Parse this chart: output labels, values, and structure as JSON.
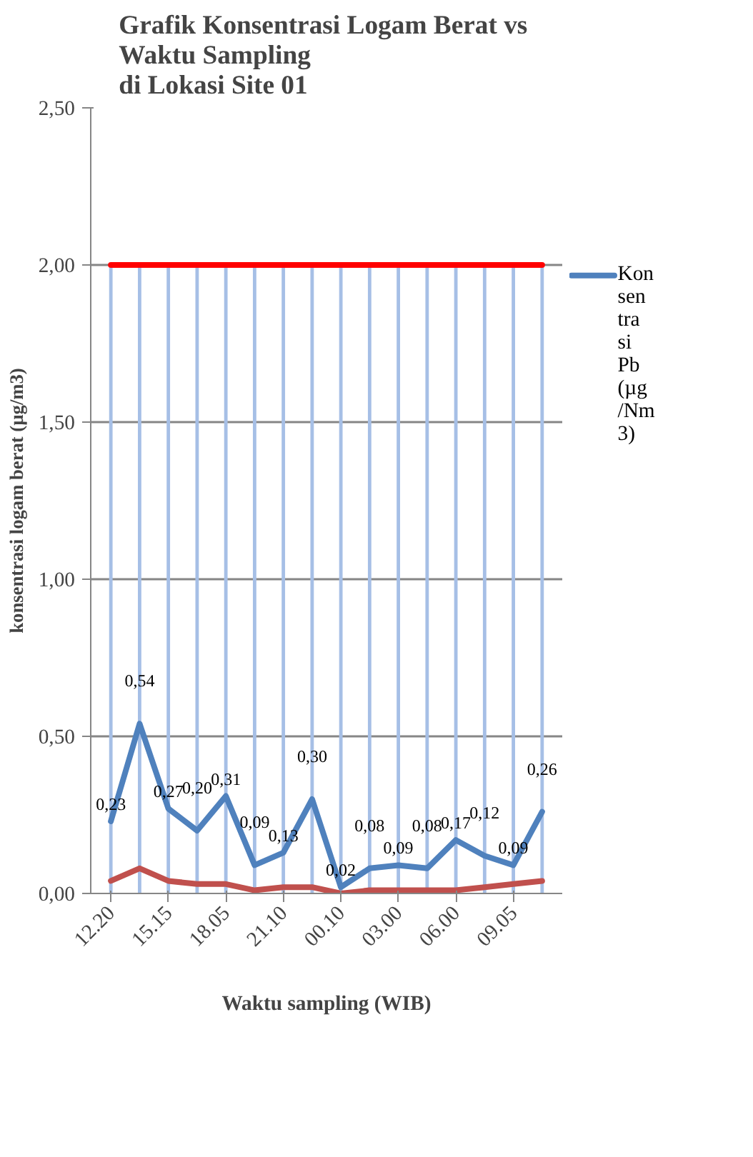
{
  "chart_data": {
    "type": "line",
    "title": "Grafik  Konsentrasi Logam Berat vs\nWaktu Sampling\ndi Lokasi Site 01",
    "xlabel": "Waktu sampling (WIB)",
    "ylabel": "konsentrasi logam berat (µg/m3)",
    "categories": [
      "12.20",
      null,
      "15.15",
      null,
      "18.05",
      null,
      "21.10",
      null,
      "00.10",
      null,
      "03.00",
      null,
      "06.00",
      null,
      "09.05",
      null
    ],
    "series": [
      {
        "type": "bar",
        "color": "#a6bfe6",
        "values": [
          2,
          2,
          2,
          2,
          2,
          2,
          2,
          2,
          2,
          2,
          2,
          2,
          2,
          2,
          2,
          2
        ]
      },
      {
        "color": "#ff0000",
        "values": [
          2,
          2,
          2,
          2,
          2,
          2,
          2,
          2,
          2,
          2,
          2,
          2,
          2,
          2,
          2,
          2
        ]
      },
      {
        "color": "#c0504d",
        "values": [
          0.04,
          0.08,
          0.04,
          0.03,
          0.03,
          0.01,
          0.02,
          0.02,
          0.0,
          0.01,
          0.01,
          0.01,
          0.01,
          0.02,
          0.03,
          0.04
        ]
      },
      {
        "name": "Konsentrasi Pb (µg/Nm3)",
        "color": "#4f81bd",
        "values": [
          0.23,
          0.54,
          0.27,
          0.2,
          0.31,
          0.09,
          0.13,
          0.3,
          0.02,
          0.08,
          0.09,
          0.08,
          0.17,
          0.12,
          0.09,
          0.26
        ],
        "value_labels": [
          "0,23",
          "0,54",
          "0,27",
          "0,20",
          "0,31",
          "0,09",
          "0,13",
          "0,30",
          "0,02",
          "0,08",
          "0,09",
          "0,08",
          "0,17",
          "0,12",
          "0,09",
          "0,26"
        ]
      }
    ],
    "ylim": [
      0,
      2.5
    ],
    "yticks": [
      {
        "value": 0,
        "label": "0,00"
      },
      {
        "value": 0.5,
        "label": "0,50"
      },
      {
        "value": 1,
        "label": "1,00"
      },
      {
        "value": 1.5,
        "label": "1,50"
      },
      {
        "value": 2,
        "label": "2,00"
      },
      {
        "value": 2.5,
        "label": "2,50"
      }
    ],
    "grid": "y",
    "legend": "right",
    "line_style": "solid"
  }
}
